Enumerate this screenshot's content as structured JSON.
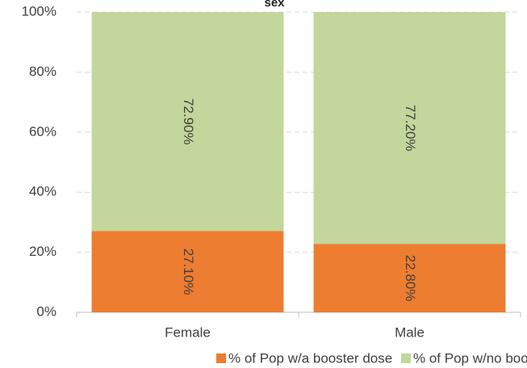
{
  "chart_data": {
    "type": "stacked_bar",
    "title": "sex",
    "categories": [
      "Female",
      "Male"
    ],
    "series": [
      {
        "name": "% of Pop w/a booster dose",
        "color": "#ed7d31",
        "values": [
          27.1,
          22.8
        ],
        "value_labels": [
          "27.10%",
          "22.80%"
        ]
      },
      {
        "name": "% of Pop w/no booster dose*",
        "color": "#c3d69b",
        "values": [
          72.9,
          77.2
        ],
        "value_labels": [
          "72.90%",
          "77.20%"
        ]
      }
    ],
    "ylim": [
      0,
      100
    ],
    "yticks": [
      {
        "value": 0,
        "label": "0%"
      },
      {
        "value": 20,
        "label": "20%"
      },
      {
        "value": 40,
        "label": "40%"
      },
      {
        "value": 60,
        "label": "60%"
      },
      {
        "value": 80,
        "label": "80%"
      },
      {
        "value": 100,
        "label": "100%"
      }
    ],
    "grid": true,
    "legend": "bottom"
  }
}
